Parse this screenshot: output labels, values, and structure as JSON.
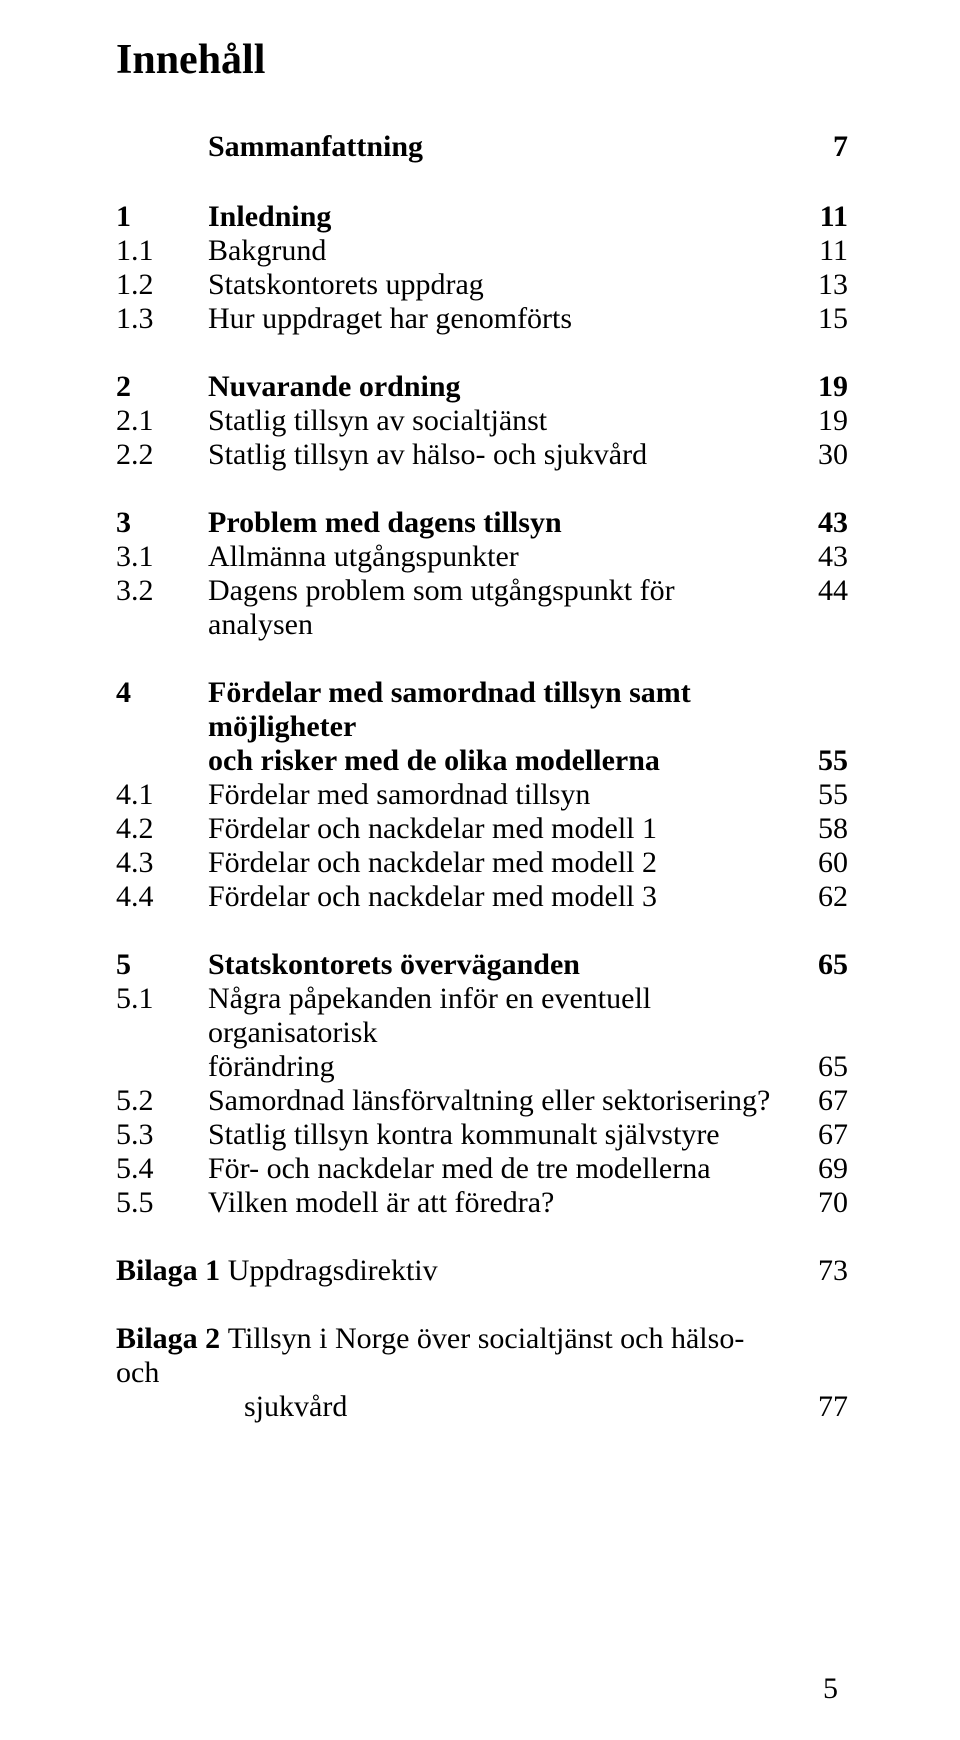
{
  "title": "Innehåll",
  "toc": {
    "sammanfattning": {
      "label": "Sammanfattning",
      "page": "7"
    },
    "ch1": {
      "num": "1",
      "label": "Inledning",
      "page": "11"
    },
    "s1_1": {
      "num": "1.1",
      "label": "Bakgrund",
      "page": "11"
    },
    "s1_2": {
      "num": "1.2",
      "label": "Statskontorets uppdrag",
      "page": "13"
    },
    "s1_3": {
      "num": "1.3",
      "label": "Hur uppdraget har genomförts",
      "page": "15"
    },
    "ch2": {
      "num": "2",
      "label": "Nuvarande ordning",
      "page": "19"
    },
    "s2_1": {
      "num": "2.1",
      "label": "Statlig tillsyn av socialtjänst",
      "page": "19"
    },
    "s2_2": {
      "num": "2.2",
      "label": "Statlig tillsyn av hälso- och sjukvård",
      "page": "30"
    },
    "ch3": {
      "num": "3",
      "label": "Problem med dagens tillsyn",
      "page": "43"
    },
    "s3_1": {
      "num": "3.1",
      "label": "Allmänna utgångspunkter",
      "page": "43"
    },
    "s3_2": {
      "num": "3.2",
      "label": "Dagens problem som utgångspunkt för analysen",
      "page": "44"
    },
    "ch4": {
      "num": "4",
      "label_l1": "Fördelar med samordnad tillsyn samt möjligheter",
      "label_l2": "och risker med de olika modellerna",
      "page": "55"
    },
    "s4_1": {
      "num": "4.1",
      "label": "Fördelar med samordnad tillsyn",
      "page": "55"
    },
    "s4_2": {
      "num": "4.2",
      "label": "Fördelar och nackdelar med modell 1",
      "page": "58"
    },
    "s4_3": {
      "num": "4.3",
      "label": "Fördelar och nackdelar med modell 2",
      "page": "60"
    },
    "s4_4": {
      "num": "4.4",
      "label": "Fördelar och nackdelar med modell 3",
      "page": "62"
    },
    "ch5": {
      "num": "5",
      "label": "Statskontorets överväganden",
      "page": "65"
    },
    "s5_1": {
      "num": "5.1",
      "label_l1": "Några påpekanden inför en eventuell organisatorisk",
      "label_l2": "förändring",
      "page": "65"
    },
    "s5_2": {
      "num": "5.2",
      "label": "Samordnad länsförvaltning eller sektorisering?",
      "page": "67"
    },
    "s5_3": {
      "num": "5.3",
      "label": "Statlig tillsyn kontra kommunalt självstyre",
      "page": "67"
    },
    "s5_4": {
      "num": "5.4",
      "label": "För- och nackdelar med de tre modellerna",
      "page": "69"
    },
    "s5_5": {
      "num": "5.5",
      "label": "Vilken modell är att föredra?",
      "page": "70"
    },
    "bilaga1": {
      "label": "Bilaga 1 ",
      "text": "Uppdragsdirektiv",
      "page": "73"
    },
    "bilaga2": {
      "label": "Bilaga 2 ",
      "text_l1": "Tillsyn i Norge över socialtjänst och hälso- och",
      "text_l2": "sjukvård",
      "page": "77"
    }
  },
  "page_number": "5"
}
